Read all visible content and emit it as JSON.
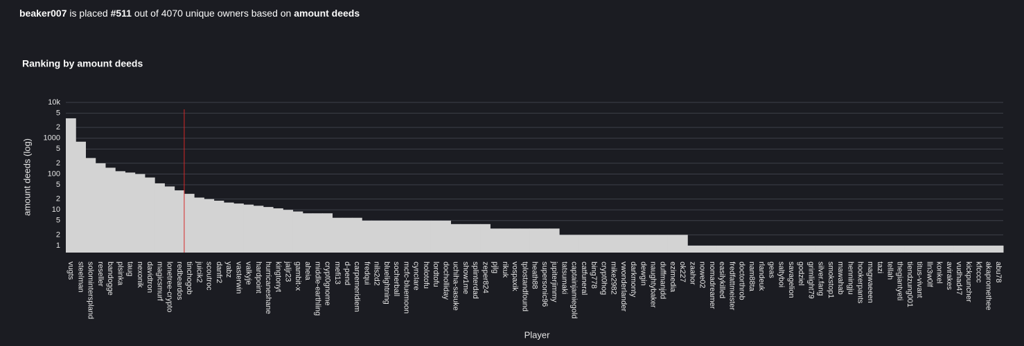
{
  "header": {
    "user": "beaker007",
    "placed": "is placed",
    "rank": "#511",
    "rest": "out of 4070 unique owners based on",
    "metric": "amount deeds"
  },
  "chart_data": {
    "type": "bar",
    "title": "Ranking by amount deeds",
    "x_label": "Player",
    "y_label": "amount deeds (log)",
    "log_y": true,
    "grid": true,
    "color": "#d3d3d3",
    "highlight_category": "tinchogob",
    "highlight_color": "#d62728",
    "ylim": [
      0.64,
      10000
    ],
    "yticks": [
      1,
      2,
      5,
      10,
      {
        "value": 20,
        "label": "2"
      },
      {
        "value": 50,
        "label": "5"
      },
      100,
      {
        "value": 200,
        "label": "2"
      },
      {
        "value": 500,
        "label": "5"
      },
      1000,
      {
        "value": 2000,
        "label": "2"
      },
      {
        "value": 5000,
        "label": "5"
      },
      {
        "value": 10000,
        "label": "10k"
      }
    ],
    "categories": [
      "vugts",
      "steelman",
      "solominterspland",
      "reseller",
      "bandogge",
      "plsinka",
      "taug",
      "nexonik",
      "davidtron",
      "magicsmurf",
      "lonetree-crypto",
      "redbeardos",
      "tinchogob",
      "juicik2",
      "scoutroc",
      "danfr2",
      "yabz",
      "vasterwin",
      "valkyje",
      "hardpoint",
      "hurricaneshane",
      "kingtonyt",
      "jaljr23",
      "gambit-x",
      "aheia",
      "middle-earthling",
      "crypt0gnome",
      "mefi13",
      "d-pend",
      "carpemeridiem",
      "fredqui",
      "nils2d2",
      "bluelightning",
      "socherball",
      "mcfc-bluemoon",
      "cyncIare",
      "holotofu",
      "lordtofu",
      "docholliday",
      "uchiha-sasuke",
      "show1me",
      "splinterdad",
      "zeper824",
      "pjlg",
      "rikuk",
      "vospaxik",
      "tplostandfound",
      "heath88",
      "supersonic96",
      "jupiterjimmy",
      "tatsumaki",
      "captainjamiegold",
      "catfuneral",
      "bing778",
      "crypt0hog",
      "mike2982",
      "vwonderlander",
      "darkmonty",
      "dewgin",
      "naughtybaker",
      "duffmanjdd",
      "ezimedia",
      "ok227",
      "zaahor",
      "nowe02",
      "nomadreamer",
      "easilykilled",
      "fredfattmeister",
      "doctorthrob",
      "nam88ta",
      "rlandeuk",
      "geas",
      "saltyboi",
      "savagelion",
      "godziel",
      "grimlight79",
      "silver.fang",
      "smokstop1",
      "mawahab",
      "henningju",
      "hookerpants",
      "magwaeeen",
      "tazi",
      "tellah",
      "thegiantyeti",
      "tiendzung001",
      "titus-vivant",
      "lln3w0lf",
      "konkel",
      "avirakes",
      "vudhad47",
      "kickpuncher",
      "kfcccc",
      "akapromethee",
      "abu78"
    ],
    "values": [
      3600,
      800,
      280,
      200,
      150,
      120,
      110,
      100,
      80,
      55,
      45,
      35,
      28,
      22,
      20,
      18,
      16,
      15,
      14,
      13,
      12,
      11,
      10,
      9,
      8,
      8,
      8,
      6,
      6,
      6,
      5,
      5,
      5,
      5,
      5,
      5,
      5,
      5,
      5,
      4,
      4,
      4,
      4,
      3,
      3,
      3,
      3,
      3,
      3,
      3,
      2,
      2,
      2,
      2,
      2,
      2,
      2,
      2,
      2,
      2,
      2,
      2,
      2,
      1,
      1,
      1,
      1,
      1,
      1,
      1,
      1,
      1,
      1,
      1,
      1,
      1,
      1,
      1,
      1,
      1,
      1,
      1,
      1,
      1,
      1,
      1,
      1,
      1,
      1,
      1,
      1,
      1,
      1,
      1,
      1
    ]
  }
}
